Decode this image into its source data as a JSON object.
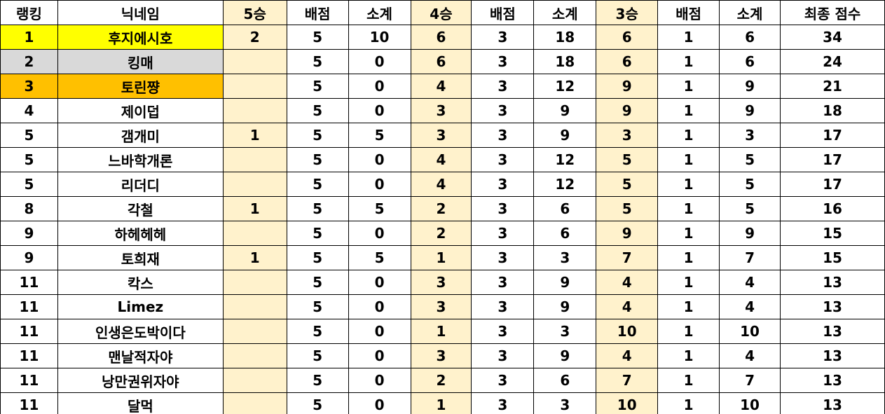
{
  "colors": {
    "rank1": "#FFFF00",
    "rank2": "#D9D9D9",
    "rank3": "#FFC000",
    "win_columns": "#FFF2CC"
  },
  "headers": [
    "랭킹",
    "닉네임",
    "5승",
    "배점",
    "소계",
    "4승",
    "배점",
    "소계",
    "3승",
    "배점",
    "소계",
    "최종 점수"
  ],
  "rows": [
    [
      "1",
      "후지에시호",
      "2",
      "5",
      "10",
      "6",
      "3",
      "18",
      "6",
      "1",
      "6",
      "34"
    ],
    [
      "2",
      "킹매",
      "",
      "5",
      "0",
      "6",
      "3",
      "18",
      "6",
      "1",
      "6",
      "24"
    ],
    [
      "3",
      "토린쨩",
      "",
      "5",
      "0",
      "4",
      "3",
      "12",
      "9",
      "1",
      "9",
      "21"
    ],
    [
      "4",
      "제이덥",
      "",
      "5",
      "0",
      "3",
      "3",
      "9",
      "9",
      "1",
      "9",
      "18"
    ],
    [
      "5",
      "갬개미",
      "1",
      "5",
      "5",
      "3",
      "3",
      "9",
      "3",
      "1",
      "3",
      "17"
    ],
    [
      "5",
      "느바학개론",
      "",
      "5",
      "0",
      "4",
      "3",
      "12",
      "5",
      "1",
      "5",
      "17"
    ],
    [
      "5",
      "리더디",
      "",
      "5",
      "0",
      "4",
      "3",
      "12",
      "5",
      "1",
      "5",
      "17"
    ],
    [
      "8",
      "각철",
      "1",
      "5",
      "5",
      "2",
      "3",
      "6",
      "5",
      "1",
      "5",
      "16"
    ],
    [
      "9",
      "하헤헤헤",
      "",
      "5",
      "0",
      "2",
      "3",
      "6",
      "9",
      "1",
      "9",
      "15"
    ],
    [
      "9",
      "토희재",
      "1",
      "5",
      "5",
      "1",
      "3",
      "3",
      "7",
      "1",
      "7",
      "15"
    ],
    [
      "11",
      "칵스",
      "",
      "5",
      "0",
      "3",
      "3",
      "9",
      "4",
      "1",
      "4",
      "13"
    ],
    [
      "11",
      "Limez",
      "",
      "5",
      "0",
      "3",
      "3",
      "9",
      "4",
      "1",
      "4",
      "13"
    ],
    [
      "11",
      "인생은도박이다",
      "",
      "5",
      "0",
      "1",
      "3",
      "3",
      "10",
      "1",
      "10",
      "13"
    ],
    [
      "11",
      "맨날적자야",
      "",
      "5",
      "0",
      "3",
      "3",
      "9",
      "4",
      "1",
      "4",
      "13"
    ],
    [
      "11",
      "낭만권위자야",
      "",
      "5",
      "0",
      "2",
      "3",
      "6",
      "7",
      "1",
      "7",
      "13"
    ],
    [
      "11",
      "달먹",
      "",
      "5",
      "0",
      "1",
      "3",
      "3",
      "10",
      "1",
      "10",
      "13"
    ]
  ]
}
